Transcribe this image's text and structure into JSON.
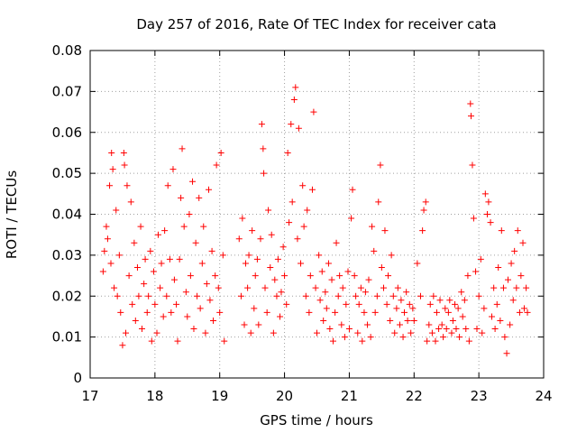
{
  "chart_data": {
    "type": "scatter",
    "title": "Day 257 of 2016, Rate Of TEC Index for receiver cata",
    "xlabel": "GPS time / hours",
    "ylabel": "ROTI / TECUs",
    "xlim": [
      17,
      24
    ],
    "ylim": [
      0,
      0.08
    ],
    "x_ticks": [
      17,
      18,
      19,
      20,
      21,
      22,
      23,
      24
    ],
    "x_tick_labels": [
      "17",
      "18",
      "19",
      "20",
      "21",
      "22",
      "23",
      "24"
    ],
    "y_ticks": [
      0,
      0.01,
      0.02,
      0.03,
      0.04,
      0.05,
      0.06,
      0.07,
      0.08
    ],
    "y_tick_labels": [
      "0",
      "0.01",
      "0.02",
      "0.03",
      "0.04",
      "0.05",
      "0.06",
      "0.07",
      "0.08"
    ],
    "grid": true,
    "marker": "+",
    "series": [
      {
        "name": "ROTI",
        "color": "#ff0000",
        "points": [
          [
            17.2,
            0.026
          ],
          [
            17.22,
            0.031
          ],
          [
            17.25,
            0.037
          ],
          [
            17.27,
            0.034
          ],
          [
            17.3,
            0.047
          ],
          [
            17.32,
            0.028
          ],
          [
            17.33,
            0.055
          ],
          [
            17.35,
            0.051
          ],
          [
            17.37,
            0.022
          ],
          [
            17.4,
            0.041
          ],
          [
            17.42,
            0.02
          ],
          [
            17.45,
            0.03
          ],
          [
            17.47,
            0.016
          ],
          [
            17.5,
            0.008
          ],
          [
            17.52,
            0.055
          ],
          [
            17.53,
            0.052
          ],
          [
            17.55,
            0.011
          ],
          [
            17.57,
            0.047
          ],
          [
            17.6,
            0.025
          ],
          [
            17.63,
            0.043
          ],
          [
            17.65,
            0.018
          ],
          [
            17.68,
            0.033
          ],
          [
            17.7,
            0.014
          ],
          [
            17.73,
            0.027
          ],
          [
            17.75,
            0.02
          ],
          [
            17.78,
            0.037
          ],
          [
            17.8,
            0.012
          ],
          [
            17.83,
            0.023
          ],
          [
            17.85,
            0.029
          ],
          [
            17.88,
            0.016
          ],
          [
            17.9,
            0.02
          ],
          [
            17.93,
            0.031
          ],
          [
            17.95,
            0.009
          ],
          [
            17.98,
            0.026
          ],
          [
            18.0,
            0.018
          ],
          [
            18.03,
            0.011
          ],
          [
            18.05,
            0.035
          ],
          [
            18.08,
            0.022
          ],
          [
            18.1,
            0.028
          ],
          [
            18.13,
            0.015
          ],
          [
            18.15,
            0.036
          ],
          [
            18.18,
            0.02
          ],
          [
            18.2,
            0.047
          ],
          [
            18.23,
            0.029
          ],
          [
            18.25,
            0.016
          ],
          [
            18.28,
            0.051
          ],
          [
            18.3,
            0.024
          ],
          [
            18.33,
            0.018
          ],
          [
            18.35,
            0.009
          ],
          [
            18.38,
            0.029
          ],
          [
            18.4,
            0.044
          ],
          [
            18.42,
            0.056
          ],
          [
            18.45,
            0.037
          ],
          [
            18.48,
            0.021
          ],
          [
            18.5,
            0.015
          ],
          [
            18.53,
            0.04
          ],
          [
            18.55,
            0.025
          ],
          [
            18.58,
            0.048
          ],
          [
            18.6,
            0.012
          ],
          [
            18.63,
            0.033
          ],
          [
            18.65,
            0.02
          ],
          [
            18.68,
            0.044
          ],
          [
            18.7,
            0.017
          ],
          [
            18.73,
            0.028
          ],
          [
            18.75,
            0.037
          ],
          [
            18.78,
            0.011
          ],
          [
            18.8,
            0.023
          ],
          [
            18.83,
            0.046
          ],
          [
            18.85,
            0.019
          ],
          [
            18.88,
            0.031
          ],
          [
            18.9,
            0.014
          ],
          [
            18.93,
            0.025
          ],
          [
            18.95,
            0.052
          ],
          [
            18.98,
            0.022
          ],
          [
            19.0,
            0.016
          ],
          [
            19.02,
            0.055
          ],
          [
            19.05,
            0.03
          ],
          [
            19.07,
            0.009
          ],
          [
            19.3,
            0.034
          ],
          [
            19.33,
            0.02
          ],
          [
            19.35,
            0.039
          ],
          [
            19.38,
            0.013
          ],
          [
            19.4,
            0.028
          ],
          [
            19.43,
            0.022
          ],
          [
            19.45,
            0.03
          ],
          [
            19.48,
            0.011
          ],
          [
            19.5,
            0.036
          ],
          [
            19.53,
            0.017
          ],
          [
            19.55,
            0.025
          ],
          [
            19.58,
            0.029
          ],
          [
            19.6,
            0.013
          ],
          [
            19.63,
            0.034
          ],
          [
            19.65,
            0.062
          ],
          [
            19.67,
            0.056
          ],
          [
            19.68,
            0.05
          ],
          [
            19.7,
            0.022
          ],
          [
            19.73,
            0.016
          ],
          [
            19.75,
            0.041
          ],
          [
            19.78,
            0.027
          ],
          [
            19.8,
            0.035
          ],
          [
            19.83,
            0.011
          ],
          [
            19.85,
            0.024
          ],
          [
            19.88,
            0.02
          ],
          [
            19.9,
            0.029
          ],
          [
            19.93,
            0.015
          ],
          [
            19.95,
            0.021
          ],
          [
            19.98,
            0.032
          ],
          [
            20.0,
            0.025
          ],
          [
            20.03,
            0.018
          ],
          [
            20.05,
            0.055
          ],
          [
            20.07,
            0.038
          ],
          [
            20.1,
            0.062
          ],
          [
            20.12,
            0.043
          ],
          [
            20.15,
            0.068
          ],
          [
            20.17,
            0.071
          ],
          [
            20.2,
            0.034
          ],
          [
            20.22,
            0.061
          ],
          [
            20.25,
            0.028
          ],
          [
            20.28,
            0.047
          ],
          [
            20.3,
            0.037
          ],
          [
            20.33,
            0.02
          ],
          [
            20.35,
            0.041
          ],
          [
            20.38,
            0.016
          ],
          [
            20.4,
            0.025
          ],
          [
            20.43,
            0.046
          ],
          [
            20.45,
            0.065
          ],
          [
            20.48,
            0.022
          ],
          [
            20.5,
            0.011
          ],
          [
            20.53,
            0.03
          ],
          [
            20.55,
            0.019
          ],
          [
            20.58,
            0.026
          ],
          [
            20.6,
            0.014
          ],
          [
            20.63,
            0.021
          ],
          [
            20.65,
            0.017
          ],
          [
            20.68,
            0.028
          ],
          [
            20.7,
            0.012
          ],
          [
            20.73,
            0.024
          ],
          [
            20.75,
            0.009
          ],
          [
            20.78,
            0.016
          ],
          [
            20.8,
            0.033
          ],
          [
            20.83,
            0.02
          ],
          [
            20.85,
            0.025
          ],
          [
            20.88,
            0.013
          ],
          [
            20.9,
            0.022
          ],
          [
            20.93,
            0.01
          ],
          [
            20.95,
            0.018
          ],
          [
            20.98,
            0.026
          ],
          [
            21.0,
            0.012
          ],
          [
            21.03,
            0.039
          ],
          [
            21.05,
            0.046
          ],
          [
            21.08,
            0.025
          ],
          [
            21.1,
            0.02
          ],
          [
            21.13,
            0.011
          ],
          [
            21.15,
            0.018
          ],
          [
            21.18,
            0.022
          ],
          [
            21.2,
            0.009
          ],
          [
            21.23,
            0.016
          ],
          [
            21.25,
            0.021
          ],
          [
            21.28,
            0.013
          ],
          [
            21.3,
            0.024
          ],
          [
            21.33,
            0.01
          ],
          [
            21.35,
            0.037
          ],
          [
            21.38,
            0.031
          ],
          [
            21.4,
            0.016
          ],
          [
            21.43,
            0.02
          ],
          [
            21.45,
            0.043
          ],
          [
            21.48,
            0.052
          ],
          [
            21.5,
            0.027
          ],
          [
            21.53,
            0.022
          ],
          [
            21.55,
            0.036
          ],
          [
            21.58,
            0.018
          ],
          [
            21.6,
            0.025
          ],
          [
            21.63,
            0.014
          ],
          [
            21.65,
            0.03
          ],
          [
            21.68,
            0.02
          ],
          [
            21.7,
            0.011
          ],
          [
            21.73,
            0.017
          ],
          [
            21.75,
            0.022
          ],
          [
            21.78,
            0.013
          ],
          [
            21.8,
            0.019
          ],
          [
            21.83,
            0.01
          ],
          [
            21.85,
            0.016
          ],
          [
            21.88,
            0.021
          ],
          [
            21.9,
            0.014
          ],
          [
            21.93,
            0.018
          ],
          [
            21.95,
            0.011
          ],
          [
            21.98,
            0.017
          ],
          [
            22.0,
            0.014
          ],
          [
            22.05,
            0.028
          ],
          [
            22.1,
            0.02
          ],
          [
            22.13,
            0.036
          ],
          [
            22.15,
            0.041
          ],
          [
            22.18,
            0.043
          ],
          [
            22.2,
            0.009
          ],
          [
            22.23,
            0.013
          ],
          [
            22.25,
            0.018
          ],
          [
            22.28,
            0.011
          ],
          [
            22.3,
            0.02
          ],
          [
            22.33,
            0.009
          ],
          [
            22.35,
            0.016
          ],
          [
            22.38,
            0.012
          ],
          [
            22.4,
            0.019
          ],
          [
            22.43,
            0.013
          ],
          [
            22.45,
            0.01
          ],
          [
            22.48,
            0.017
          ],
          [
            22.5,
            0.012
          ],
          [
            22.53,
            0.016
          ],
          [
            22.55,
            0.019
          ],
          [
            22.58,
            0.011
          ],
          [
            22.6,
            0.014
          ],
          [
            22.63,
            0.018
          ],
          [
            22.65,
            0.012
          ],
          [
            22.68,
            0.017
          ],
          [
            22.7,
            0.01
          ],
          [
            22.73,
            0.021
          ],
          [
            22.75,
            0.015
          ],
          [
            22.78,
            0.019
          ],
          [
            22.8,
            0.012
          ],
          [
            22.83,
            0.025
          ],
          [
            22.85,
            0.009
          ],
          [
            22.87,
            0.067
          ],
          [
            22.88,
            0.064
          ],
          [
            22.9,
            0.052
          ],
          [
            22.92,
            0.039
          ],
          [
            22.95,
            0.026
          ],
          [
            22.97,
            0.012
          ],
          [
            23.0,
            0.02
          ],
          [
            23.03,
            0.029
          ],
          [
            23.05,
            0.011
          ],
          [
            23.08,
            0.017
          ],
          [
            23.1,
            0.045
          ],
          [
            23.13,
            0.04
          ],
          [
            23.15,
            0.043
          ],
          [
            23.18,
            0.038
          ],
          [
            23.2,
            0.015
          ],
          [
            23.23,
            0.022
          ],
          [
            23.25,
            0.012
          ],
          [
            23.28,
            0.018
          ],
          [
            23.3,
            0.027
          ],
          [
            23.33,
            0.014
          ],
          [
            23.35,
            0.036
          ],
          [
            23.38,
            0.022
          ],
          [
            23.4,
            0.01
          ],
          [
            23.43,
            0.006
          ],
          [
            23.45,
            0.024
          ],
          [
            23.48,
            0.013
          ],
          [
            23.5,
            0.028
          ],
          [
            23.53,
            0.019
          ],
          [
            23.55,
            0.031
          ],
          [
            23.58,
            0.022
          ],
          [
            23.6,
            0.036
          ],
          [
            23.63,
            0.016
          ],
          [
            23.65,
            0.025
          ],
          [
            23.68,
            0.033
          ],
          [
            23.7,
            0.017
          ],
          [
            23.73,
            0.022
          ],
          [
            23.75,
            0.016
          ]
        ]
      }
    ]
  }
}
